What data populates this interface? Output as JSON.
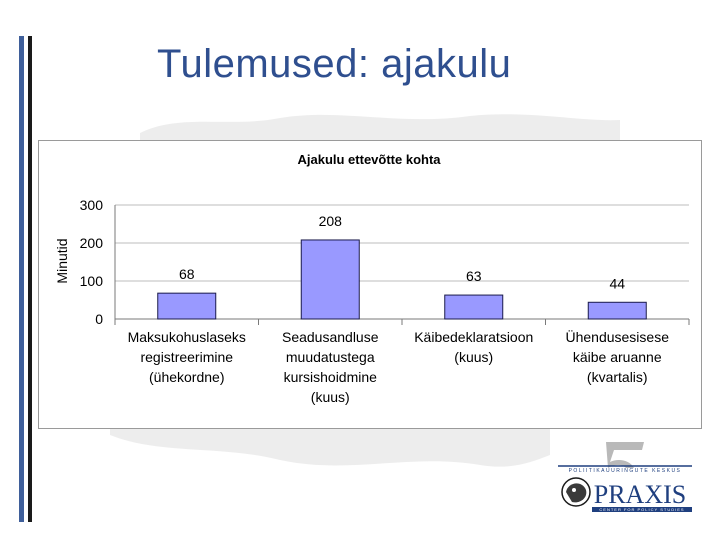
{
  "slide": {
    "title": "Tulemused: ajakulu"
  },
  "chart_data": {
    "type": "bar",
    "title": "Ajakulu ettevõtte kohta",
    "ylabel": "Minutid",
    "xlabel": "",
    "ylim": [
      0,
      300
    ],
    "yticks": [
      0,
      100,
      200,
      300
    ],
    "grid": true,
    "categories": [
      [
        "Maksukohuslaseks",
        "registreerimine",
        "(ühekordne)"
      ],
      [
        "Seadusandluse",
        "muudatustega",
        "kursishoidmine",
        "(kuus)"
      ],
      [
        "Käibedeklaratsioon",
        "(kuus)"
      ],
      [
        "Ühendusesisese",
        "käibe aruanne",
        "(kvartalis)"
      ]
    ],
    "values": [
      68,
      208,
      63,
      44
    ],
    "bar_color": "#9999ff",
    "bar_edge_color": "#1a1a4a"
  },
  "logo": {
    "text": "PRAXIS",
    "top_line": "POLIITIKAUURINGUTE KESKUS",
    "bottom_line": "CENTER FOR POLICY STUDIES",
    "accent_color": "#1f3f7f"
  }
}
